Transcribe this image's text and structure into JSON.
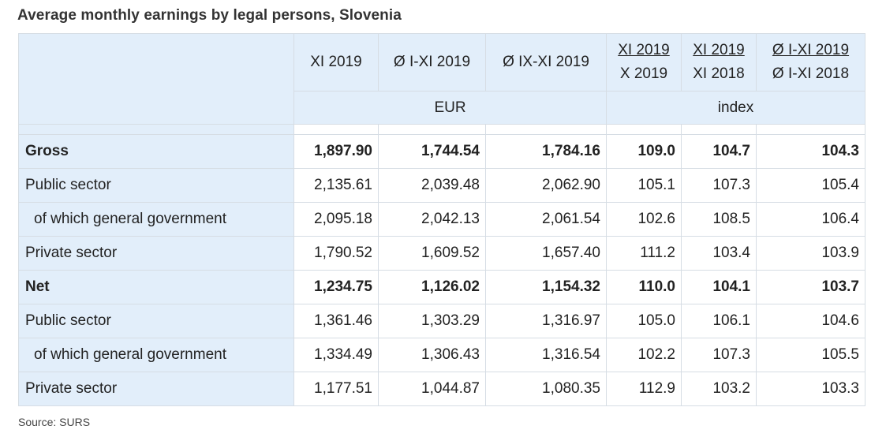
{
  "title": "Average monthly earnings by legal persons, Slovenia",
  "columns": [
    {
      "label": "XI 2019"
    },
    {
      "label": "Ø I-XI 2019"
    },
    {
      "label": "Ø IX-XI 2019"
    },
    {
      "num": "XI 2019",
      "den": "X 2019"
    },
    {
      "num": "XI 2019",
      "den": "XI 2018"
    },
    {
      "num": "Ø I-XI 2019",
      "den": "Ø I-XI 2018"
    }
  ],
  "units": {
    "eur": "EUR",
    "index": "index"
  },
  "rows": [
    {
      "label": "Gross",
      "bold": true,
      "indent": false,
      "values": [
        "1,897.90",
        "1,744.54",
        "1,784.16",
        "109.0",
        "104.7",
        "104.3"
      ]
    },
    {
      "label": "Public sector",
      "bold": false,
      "indent": false,
      "values": [
        "2,135.61",
        "2,039.48",
        "2,062.90",
        "105.1",
        "107.3",
        "105.4"
      ]
    },
    {
      "label": "of which general government",
      "bold": false,
      "indent": true,
      "values": [
        "2,095.18",
        "2,042.13",
        "2,061.54",
        "102.6",
        "108.5",
        "106.4"
      ]
    },
    {
      "label": "Private sector",
      "bold": false,
      "indent": false,
      "values": [
        "1,790.52",
        "1,609.52",
        "1,657.40",
        "111.2",
        "103.4",
        "103.9"
      ]
    },
    {
      "label": "Net",
      "bold": true,
      "indent": false,
      "values": [
        "1,234.75",
        "1,126.02",
        "1,154.32",
        "110.0",
        "104.1",
        "103.7"
      ]
    },
    {
      "label": "Public sector",
      "bold": false,
      "indent": false,
      "values": [
        "1,361.46",
        "1,303.29",
        "1,316.97",
        "105.0",
        "106.1",
        "104.6"
      ]
    },
    {
      "label": "of which general government",
      "bold": false,
      "indent": true,
      "values": [
        "1,334.49",
        "1,306.43",
        "1,316.54",
        "102.2",
        "107.3",
        "105.5"
      ]
    },
    {
      "label": "Private sector",
      "bold": false,
      "indent": false,
      "values": [
        "1,177.51",
        "1,044.87",
        "1,080.35",
        "112.9",
        "103.2",
        "103.3"
      ]
    }
  ],
  "source": "Source: SURS"
}
